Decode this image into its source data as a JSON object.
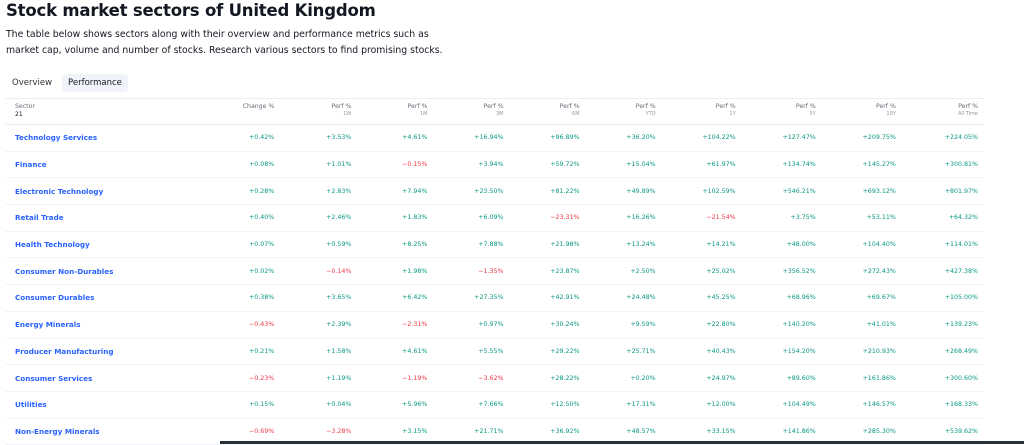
{
  "page": {
    "title": "Stock market sectors of United Kingdom",
    "description": "The table below shows sectors along with their overview and performance metrics such as market cap, volume and number of stocks. Research various sectors to find promising stocks."
  },
  "tabs": [
    {
      "label": "Overview",
      "active": false
    },
    {
      "label": "Performance",
      "active": true
    }
  ],
  "table": {
    "sector_header": "Sector",
    "sector_count": "21",
    "columns": [
      {
        "label": "Change %",
        "sub": ""
      },
      {
        "label": "Perf %",
        "sub": "1W"
      },
      {
        "label": "Perf %",
        "sub": "1M"
      },
      {
        "label": "Perf %",
        "sub": "3M"
      },
      {
        "label": "Perf %",
        "sub": "6M"
      },
      {
        "label": "Perf %",
        "sub": "YTD"
      },
      {
        "label": "Perf %",
        "sub": "1Y"
      },
      {
        "label": "Perf %",
        "sub": "5Y"
      },
      {
        "label": "Perf %",
        "sub": "10Y"
      },
      {
        "label": "Perf %",
        "sub": "All Time"
      }
    ],
    "rows": [
      {
        "sector": "Technology Services",
        "values": [
          "+0.42%",
          "+3.53%",
          "+4.61%",
          "+16.94%",
          "+96.89%",
          "+36.20%",
          "+104.22%",
          "+127.47%",
          "+209.75%",
          "+224.05%"
        ]
      },
      {
        "sector": "Finance",
        "values": [
          "+0.08%",
          "+1.01%",
          "−0.15%",
          "+3.94%",
          "+59.72%",
          "+15.04%",
          "+61.97%",
          "+134.74%",
          "+145.27%",
          "+300.81%"
        ]
      },
      {
        "sector": "Electronic Technology",
        "values": [
          "+0.28%",
          "+2.83%",
          "+7.94%",
          "+23.50%",
          "+81.22%",
          "+49.89%",
          "+102.59%",
          "+546.21%",
          "+693.12%",
          "+801.97%"
        ]
      },
      {
        "sector": "Retail Trade",
        "values": [
          "+0.40%",
          "+2.46%",
          "+1.83%",
          "+6.09%",
          "−23.31%",
          "+16.26%",
          "−21.54%",
          "+3.75%",
          "+53.11%",
          "+64.32%"
        ]
      },
      {
        "sector": "Health Technology",
        "values": [
          "+0.07%",
          "+0.59%",
          "+8.25%",
          "+7.88%",
          "+21.98%",
          "+13.24%",
          "+14.21%",
          "+48.00%",
          "+104.40%",
          "+114.01%"
        ]
      },
      {
        "sector": "Consumer Non-Durables",
        "values": [
          "+0.02%",
          "−0.14%",
          "+1.98%",
          "−1.35%",
          "+23.87%",
          "+2.50%",
          "+25.02%",
          "+356.52%",
          "+272.43%",
          "+427.38%"
        ]
      },
      {
        "sector": "Consumer Durables",
        "values": [
          "+0.38%",
          "+3.65%",
          "+6.42%",
          "+27.35%",
          "+42.91%",
          "+24.48%",
          "+45.25%",
          "+68.96%",
          "+69.67%",
          "+105.00%"
        ]
      },
      {
        "sector": "Energy Minerals",
        "values": [
          "−0.43%",
          "+2.39%",
          "−2.31%",
          "+0.97%",
          "+30.24%",
          "+9.59%",
          "+22.80%",
          "+140.20%",
          "+41.01%",
          "+139.23%"
        ]
      },
      {
        "sector": "Producer Manufacturing",
        "values": [
          "+0.21%",
          "+1.58%",
          "+4.61%",
          "+5.55%",
          "+29.22%",
          "+25.71%",
          "+40.43%",
          "+154.20%",
          "+210.93%",
          "+268.49%"
        ]
      },
      {
        "sector": "Consumer Services",
        "values": [
          "−0.23%",
          "+1.19%",
          "−1.19%",
          "−3.62%",
          "+28.22%",
          "+0.20%",
          "+24.97%",
          "+89.60%",
          "+161.86%",
          "+300.60%"
        ]
      },
      {
        "sector": "Utilities",
        "values": [
          "+0.15%",
          "+0.04%",
          "+5.96%",
          "+7.66%",
          "+12.50%",
          "+17.31%",
          "+12.00%",
          "+104.49%",
          "+146.57%",
          "+168.33%"
        ]
      },
      {
        "sector": "Non-Energy Minerals",
        "values": [
          "−0.69%",
          "−3.28%",
          "+3.15%",
          "+21.71%",
          "+36.92%",
          "+48.57%",
          "+33.15%",
          "+141.86%",
          "+285.30%",
          "+539.62%"
        ]
      }
    ]
  },
  "colors": {
    "positive": "#089981",
    "negative": "#f23645",
    "link": "#2962ff"
  }
}
